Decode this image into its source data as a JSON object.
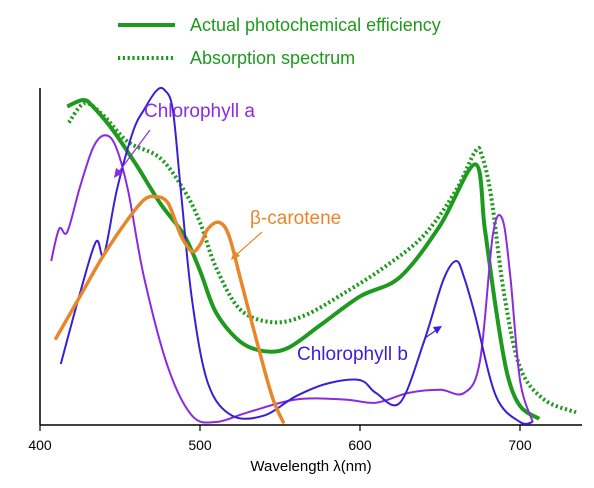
{
  "chart_data": {
    "type": "line",
    "xlabel": "Wavelength λ(nm)",
    "xlim": [
      400,
      735
    ],
    "ylim": [
      0,
      1
    ],
    "grid": false,
    "legend_position": "top",
    "x_ticks": [
      "400",
      "500",
      "600",
      "700"
    ],
    "legend": [
      {
        "label": "Actual photochemical efficiency",
        "style": "solid",
        "color": "#1e9a1e"
      },
      {
        "label": "Absorption spectrum",
        "style": "dotted",
        "color": "#1e9a1e"
      }
    ],
    "annotations": [
      {
        "text": "Chlorophyll a",
        "color": "#8a2be2"
      },
      {
        "text": "β-carotene",
        "color": "#e8862a"
      },
      {
        "text": "Chlorophyll b",
        "color": "#3a1fd6"
      }
    ],
    "series": [
      {
        "key": "efficiency",
        "style": "solid",
        "color": "#1e9a1e",
        "x": [
          417,
          427,
          433,
          445,
          460,
          475,
          490,
          500,
          510,
          525,
          540,
          555,
          575,
          600,
          625,
          650,
          672,
          678,
          685,
          692,
          700,
          712
        ],
        "y": [
          0.98,
          1.0,
          0.98,
          0.91,
          0.8,
          0.68,
          0.58,
          0.47,
          0.34,
          0.25,
          0.22,
          0.23,
          0.3,
          0.39,
          0.45,
          0.61,
          0.8,
          0.6,
          0.35,
          0.15,
          0.05,
          0.01
        ]
      },
      {
        "key": "absorption",
        "style": "dotted",
        "color": "#1e9a1e",
        "x": [
          418,
          428,
          440,
          455,
          475,
          490,
          500,
          510,
          525,
          545,
          565,
          590,
          615,
          640,
          660,
          672,
          676,
          682,
          690,
          700,
          715,
          735
        ],
        "y": [
          0.93,
          0.99,
          0.95,
          0.87,
          0.82,
          0.72,
          0.62,
          0.48,
          0.35,
          0.31,
          0.33,
          0.4,
          0.48,
          0.58,
          0.72,
          0.84,
          0.83,
          0.7,
          0.4,
          0.17,
          0.07,
          0.03
        ]
      },
      {
        "key": "chlorophyll_a",
        "style": "solid",
        "color": "#8a2be2",
        "x": [
          407,
          412,
          417,
          425,
          433,
          440,
          447,
          455,
          465,
          480,
          495,
          510,
          530,
          560,
          590,
          610,
          630,
          650,
          665,
          675,
          683,
          689,
          694,
          700,
          708
        ],
        "y": [
          0.5,
          0.6,
          0.59,
          0.73,
          0.85,
          0.89,
          0.86,
          0.72,
          0.45,
          0.17,
          0.02,
          0.0,
          0.03,
          0.07,
          0.07,
          0.06,
          0.09,
          0.1,
          0.09,
          0.19,
          0.58,
          0.63,
          0.45,
          0.13,
          0.0
        ]
      },
      {
        "key": "chlorophyll_b",
        "style": "solid",
        "color": "#3a1fd6",
        "x": [
          413,
          425,
          435,
          440,
          448,
          458,
          465,
          473,
          478,
          483,
          488,
          495,
          505,
          520,
          540,
          560,
          580,
          600,
          610,
          625,
          640,
          652,
          660,
          665,
          672,
          685,
          700,
          708
        ],
        "y": [
          0.18,
          0.4,
          0.56,
          0.52,
          0.72,
          0.9,
          0.97,
          1.03,
          1.03,
          0.97,
          0.72,
          0.38,
          0.12,
          0.02,
          0.02,
          0.08,
          0.12,
          0.13,
          0.09,
          0.06,
          0.25,
          0.44,
          0.5,
          0.45,
          0.33,
          0.08,
          0.0,
          0.0
        ]
      },
      {
        "key": "beta_carotene",
        "style": "solid",
        "color": "#e8862a",
        "x": [
          410,
          425,
          440,
          455,
          465,
          472,
          480,
          488,
          495,
          500,
          505,
          512,
          518,
          525,
          535,
          545,
          552
        ],
        "y": [
          0.26,
          0.39,
          0.52,
          0.63,
          0.69,
          0.7,
          0.68,
          0.58,
          0.53,
          0.55,
          0.6,
          0.62,
          0.58,
          0.45,
          0.26,
          0.08,
          0.0
        ]
      }
    ]
  }
}
